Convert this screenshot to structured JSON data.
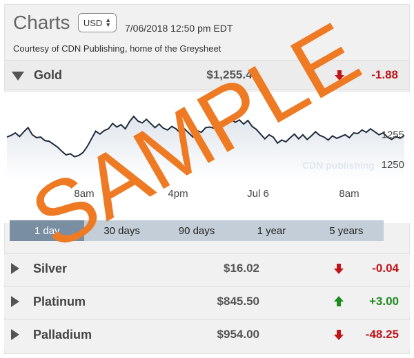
{
  "header": {
    "title": "Charts",
    "currency": "USD",
    "timestamp": "7/06/2018 12:50 pm EDT",
    "courtesy": "Courtesy of CDN Publishing, home of the Greysheet"
  },
  "gold": {
    "name": "Gold",
    "price": "$1,255.45",
    "change": "-1.88",
    "direction": "down"
  },
  "metals": [
    {
      "name": "Silver",
      "price": "$16.02",
      "change": "-0.04",
      "direction": "down"
    },
    {
      "name": "Platinum",
      "price": "$845.50",
      "change": "+3.00",
      "direction": "up"
    },
    {
      "name": "Palladium",
      "price": "$954.00",
      "change": "-48.25",
      "direction": "down"
    }
  ],
  "tabs": [
    "1 day",
    "30 days",
    "90 days",
    "1 year",
    "5 years"
  ],
  "active_tab": 0,
  "watermark": {
    "sample": "SAMPLE",
    "logo": "CDN publishing"
  },
  "colors": {
    "down": "#c0141b",
    "up": "#1c8a1c",
    "line": "#1f2a3c",
    "active_tab": "#7a8ea2",
    "watermark": "#ee7a24"
  },
  "chart_data": {
    "type": "area",
    "series_name": "Gold",
    "x_tick_labels": [
      "8am",
      "4pm",
      "Jul 6",
      "8am"
    ],
    "y_tick_labels": [
      "1255",
      "1250"
    ],
    "y_ticks": [
      1255,
      1250
    ],
    "ylim": [
      1248,
      1261
    ],
    "grid": false,
    "y": [
      1254.6,
      1254.9,
      1255.3,
      1254.7,
      1255.5,
      1256.2,
      1255.0,
      1254.5,
      1254.6,
      1254.0,
      1253.9,
      1253.4,
      1252.9,
      1252.2,
      1251.6,
      1251.8,
      1251.3,
      1251.5,
      1252.0,
      1253.0,
      1254.3,
      1255.6,
      1255.1,
      1255.7,
      1256.0,
      1256.9,
      1256.3,
      1256.7,
      1256.0,
      1257.2,
      1258.1,
      1257.3,
      1257.0,
      1257.6,
      1256.9,
      1256.2,
      1256.8,
      1256.1,
      1255.8,
      1256.4,
      1256.0,
      1255.3,
      1256.0,
      1255.3,
      1254.6,
      1255.7,
      1255.4,
      1256.2,
      1256.3,
      1256.1,
      1256.9,
      1256.4,
      1257.2,
      1257.6,
      1257.1,
      1257.5,
      1256.8,
      1257.4,
      1256.4,
      1255.9,
      1255.1,
      1254.3,
      1255.0,
      1254.6,
      1253.6,
      1254.1,
      1253.8,
      1254.5,
      1255.1,
      1254.3,
      1255.0,
      1254.2,
      1254.8,
      1255.5,
      1254.9,
      1254.6,
      1254.1,
      1254.8,
      1254.4,
      1254.7,
      1255.0,
      1254.5,
      1255.3,
      1255.2,
      1255.8,
      1255.4,
      1256.0,
      1255.5,
      1255.0,
      1255.3,
      1254.6,
      1254.2,
      1254.7,
      1254.4,
      1254.9
    ]
  }
}
